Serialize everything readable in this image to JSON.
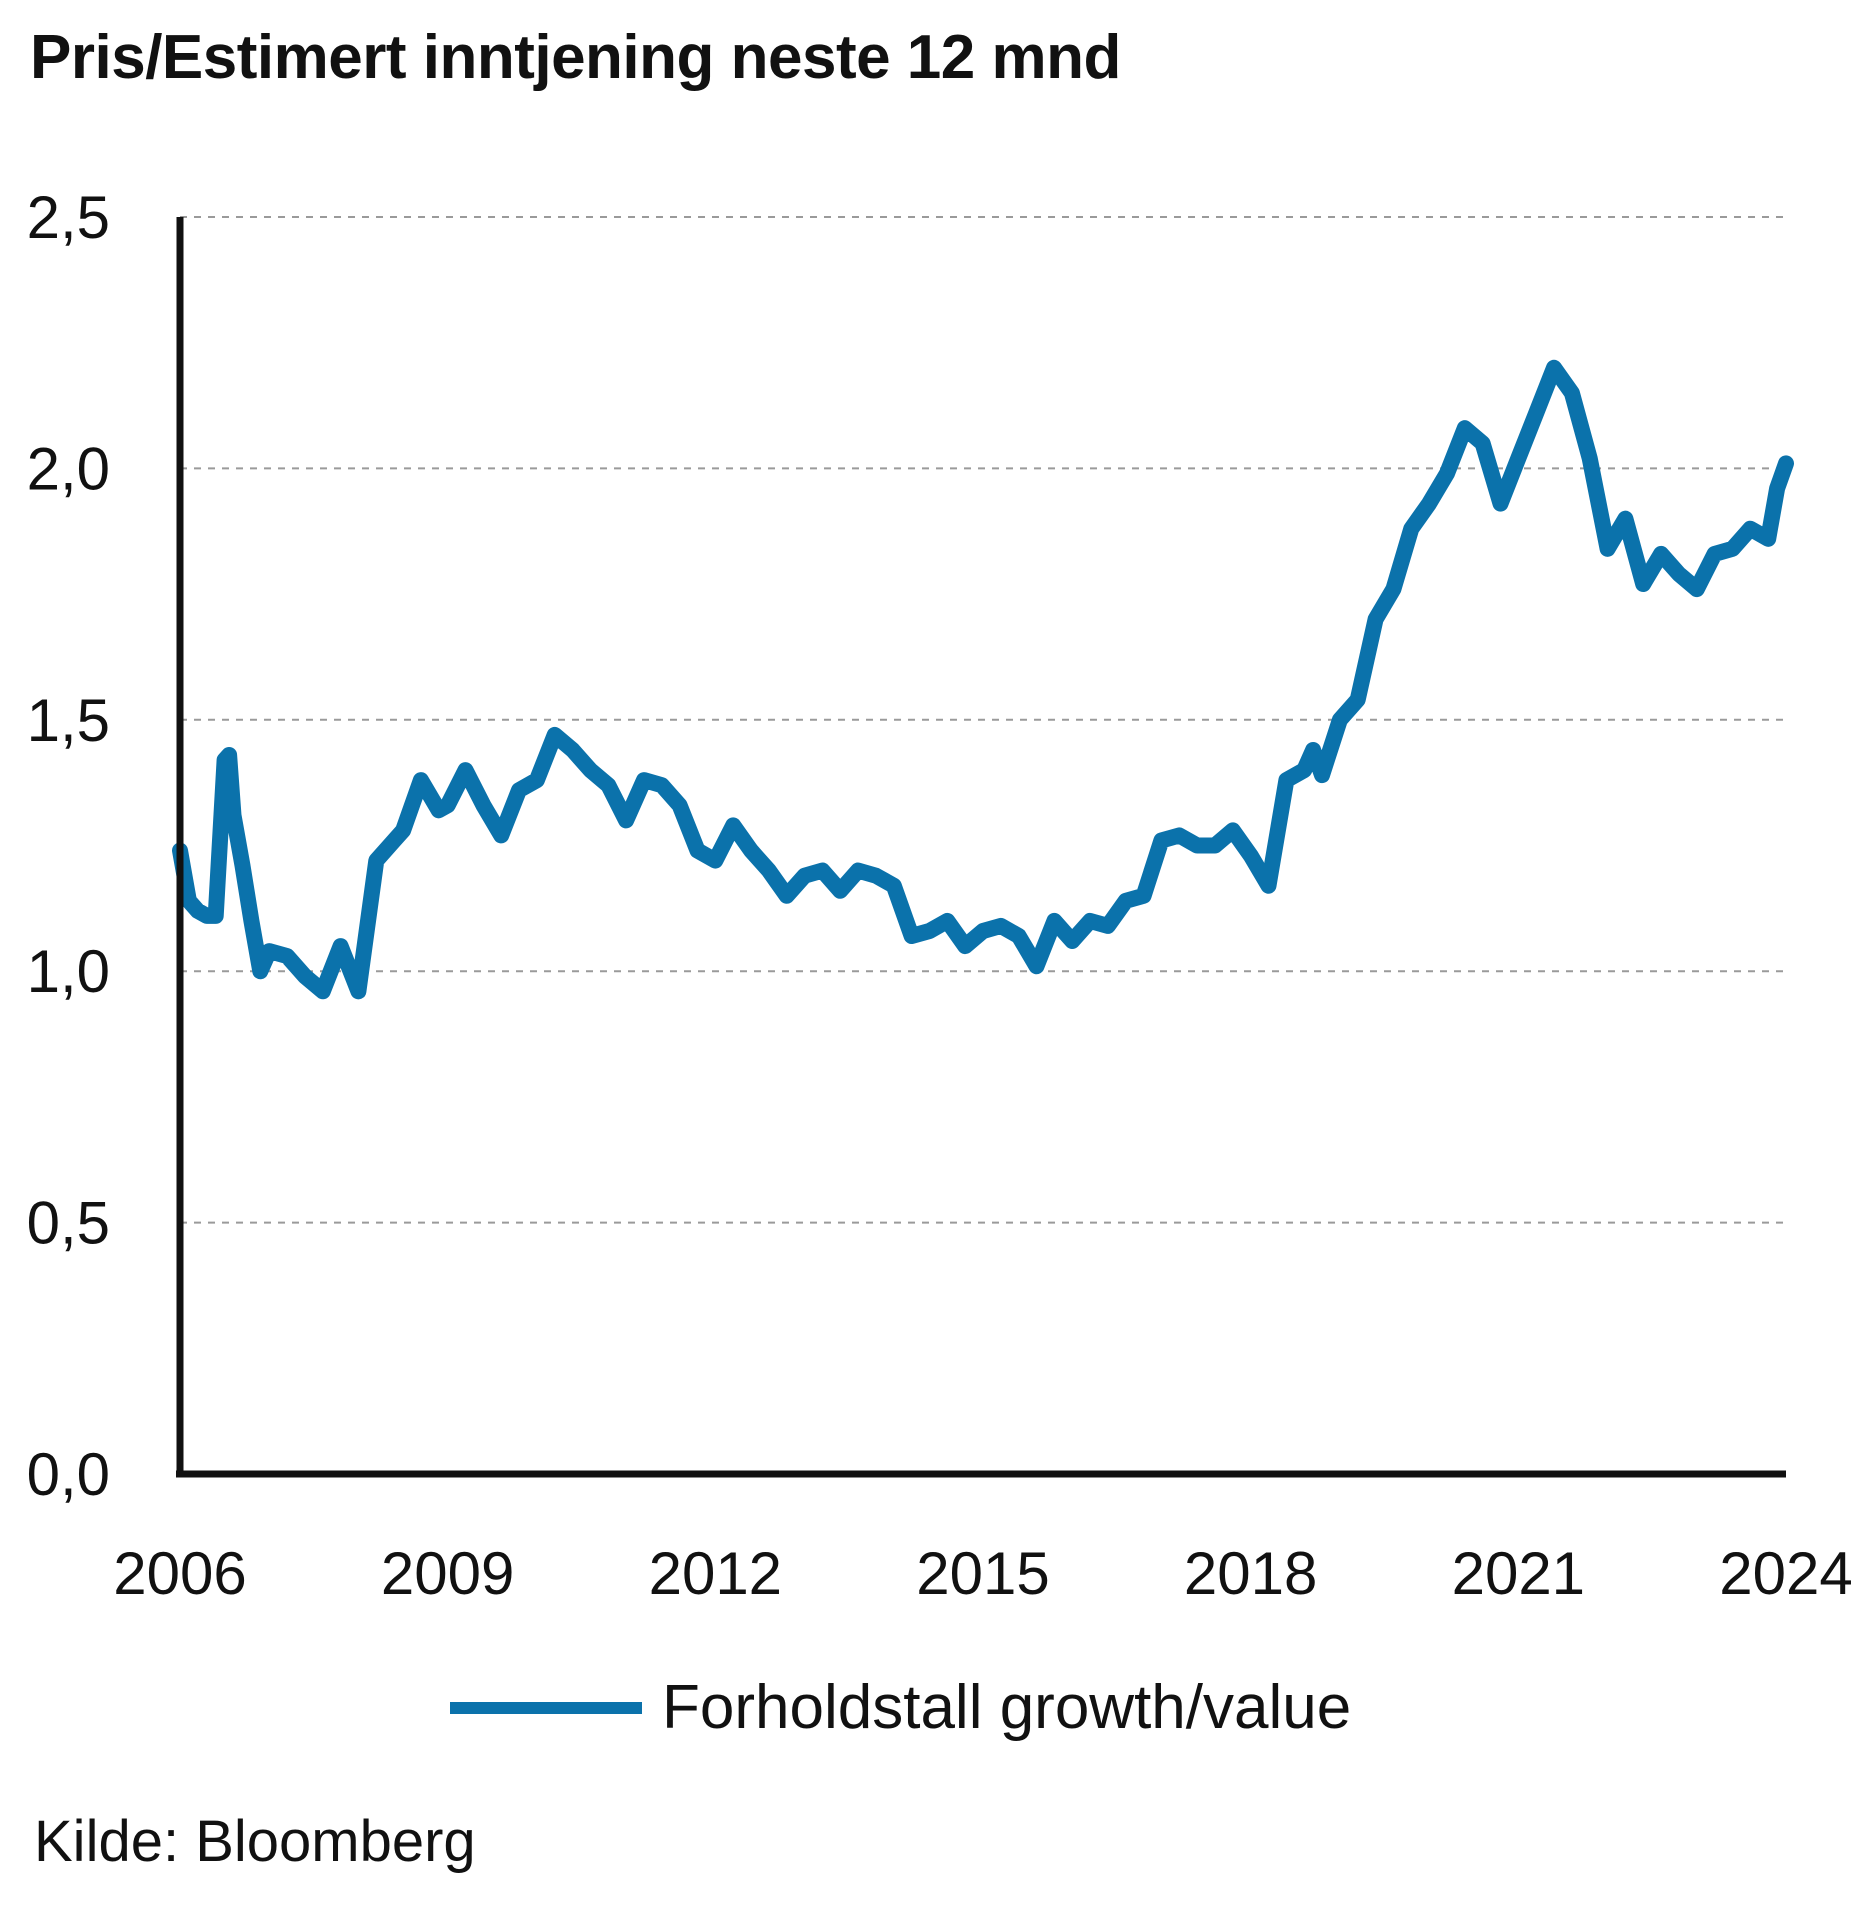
{
  "colors": {
    "series": "#0b72ab",
    "axis": "#111111",
    "grid": "#9a9a9a"
  },
  "chart_data": {
    "type": "line",
    "title": "Pris/Estimert inntjening neste 12 mnd",
    "xlabel": "",
    "ylabel": "",
    "xlim": [
      2006,
      2024
    ],
    "ylim": [
      0,
      2.5
    ],
    "x_ticks": [
      "2006",
      "2009",
      "2012",
      "2015",
      "2018",
      "2021",
      "2024"
    ],
    "y_ticks": [
      "0,0",
      "0,5",
      "1,0",
      "1,5",
      "2,0",
      "2,5"
    ],
    "grid": "horizontal dashed",
    "legend_position": "bottom-center",
    "series": [
      {
        "name": "Forholdstall growth/value",
        "x": [
          2006.0,
          2006.1,
          2006.2,
          2006.3,
          2006.4,
          2006.5,
          2006.55,
          2006.6,
          2006.7,
          2006.8,
          2006.9,
          2007.0,
          2007.2,
          2007.4,
          2007.6,
          2007.8,
          2008.0,
          2008.2,
          2008.4,
          2008.5,
          2008.7,
          2008.9,
          2009.0,
          2009.2,
          2009.4,
          2009.6,
          2009.8,
          2010.0,
          2010.2,
          2010.4,
          2010.6,
          2010.8,
          2011.0,
          2011.2,
          2011.4,
          2011.6,
          2011.8,
          2012.0,
          2012.2,
          2012.4,
          2012.6,
          2012.8,
          2013.0,
          2013.2,
          2013.4,
          2013.6,
          2013.8,
          2014.0,
          2014.2,
          2014.4,
          2014.6,
          2014.8,
          2015.0,
          2015.2,
          2015.4,
          2015.6,
          2015.8,
          2016.0,
          2016.2,
          2016.4,
          2016.6,
          2016.8,
          2017.0,
          2017.2,
          2017.4,
          2017.6,
          2017.8,
          2018.0,
          2018.2,
          2018.4,
          2018.6,
          2018.7,
          2018.8,
          2019.0,
          2019.2,
          2019.4,
          2019.6,
          2019.8,
          2020.0,
          2020.2,
          2020.4,
          2020.6,
          2020.8,
          2021.0,
          2021.2,
          2021.4,
          2021.6,
          2021.8,
          2022.0,
          2022.2,
          2022.4,
          2022.6,
          2022.8,
          2023.0,
          2023.2,
          2023.4,
          2023.6,
          2023.8,
          2023.9,
          2024.0
        ],
        "y": [
          1.24,
          1.14,
          1.12,
          1.11,
          1.11,
          1.42,
          1.43,
          1.31,
          1.21,
          1.1,
          1.0,
          1.04,
          1.03,
          0.99,
          0.96,
          1.05,
          0.96,
          1.22,
          1.26,
          1.28,
          1.38,
          1.32,
          1.33,
          1.4,
          1.33,
          1.27,
          1.36,
          1.38,
          1.47,
          1.44,
          1.4,
          1.37,
          1.3,
          1.38,
          1.37,
          1.33,
          1.24,
          1.22,
          1.29,
          1.24,
          1.2,
          1.15,
          1.19,
          1.2,
          1.16,
          1.2,
          1.19,
          1.17,
          1.07,
          1.08,
          1.1,
          1.05,
          1.08,
          1.09,
          1.07,
          1.01,
          1.1,
          1.06,
          1.1,
          1.09,
          1.14,
          1.15,
          1.26,
          1.27,
          1.25,
          1.25,
          1.28,
          1.23,
          1.17,
          1.38,
          1.4,
          1.44,
          1.39,
          1.5,
          1.54,
          1.7,
          1.76,
          1.88,
          1.93,
          1.99,
          2.08,
          2.05,
          1.93,
          2.02,
          2.11,
          2.2,
          2.15,
          2.02,
          1.84,
          1.9,
          1.77,
          1.83,
          1.79,
          1.76,
          1.83,
          1.84,
          1.88,
          1.86,
          1.96,
          2.01
        ]
      }
    ],
    "source": "Kilde: Bloomberg"
  }
}
